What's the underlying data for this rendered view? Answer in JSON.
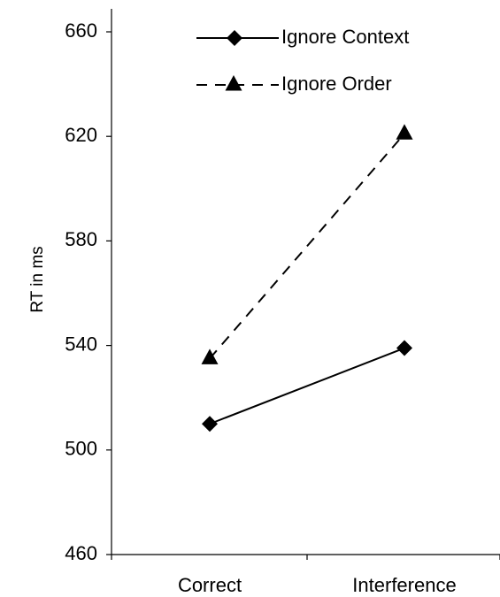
{
  "chart_data": {
    "type": "line",
    "categories": [
      "Correct",
      "Interference"
    ],
    "ylabel": "RT in ms",
    "xlabel": "",
    "ylim": [
      460,
      660
    ],
    "yticks": [
      "460",
      "500",
      "540",
      "580",
      "620",
      "660"
    ],
    "grid": false,
    "legend_position": "top",
    "series": [
      {
        "name": "Ignore Context",
        "values": [
          510,
          539
        ],
        "line_style": "solid",
        "marker": "diamond"
      },
      {
        "name": "Ignore Order",
        "values": [
          535,
          621
        ],
        "line_style": "dashed",
        "marker": "triangle"
      }
    ]
  }
}
